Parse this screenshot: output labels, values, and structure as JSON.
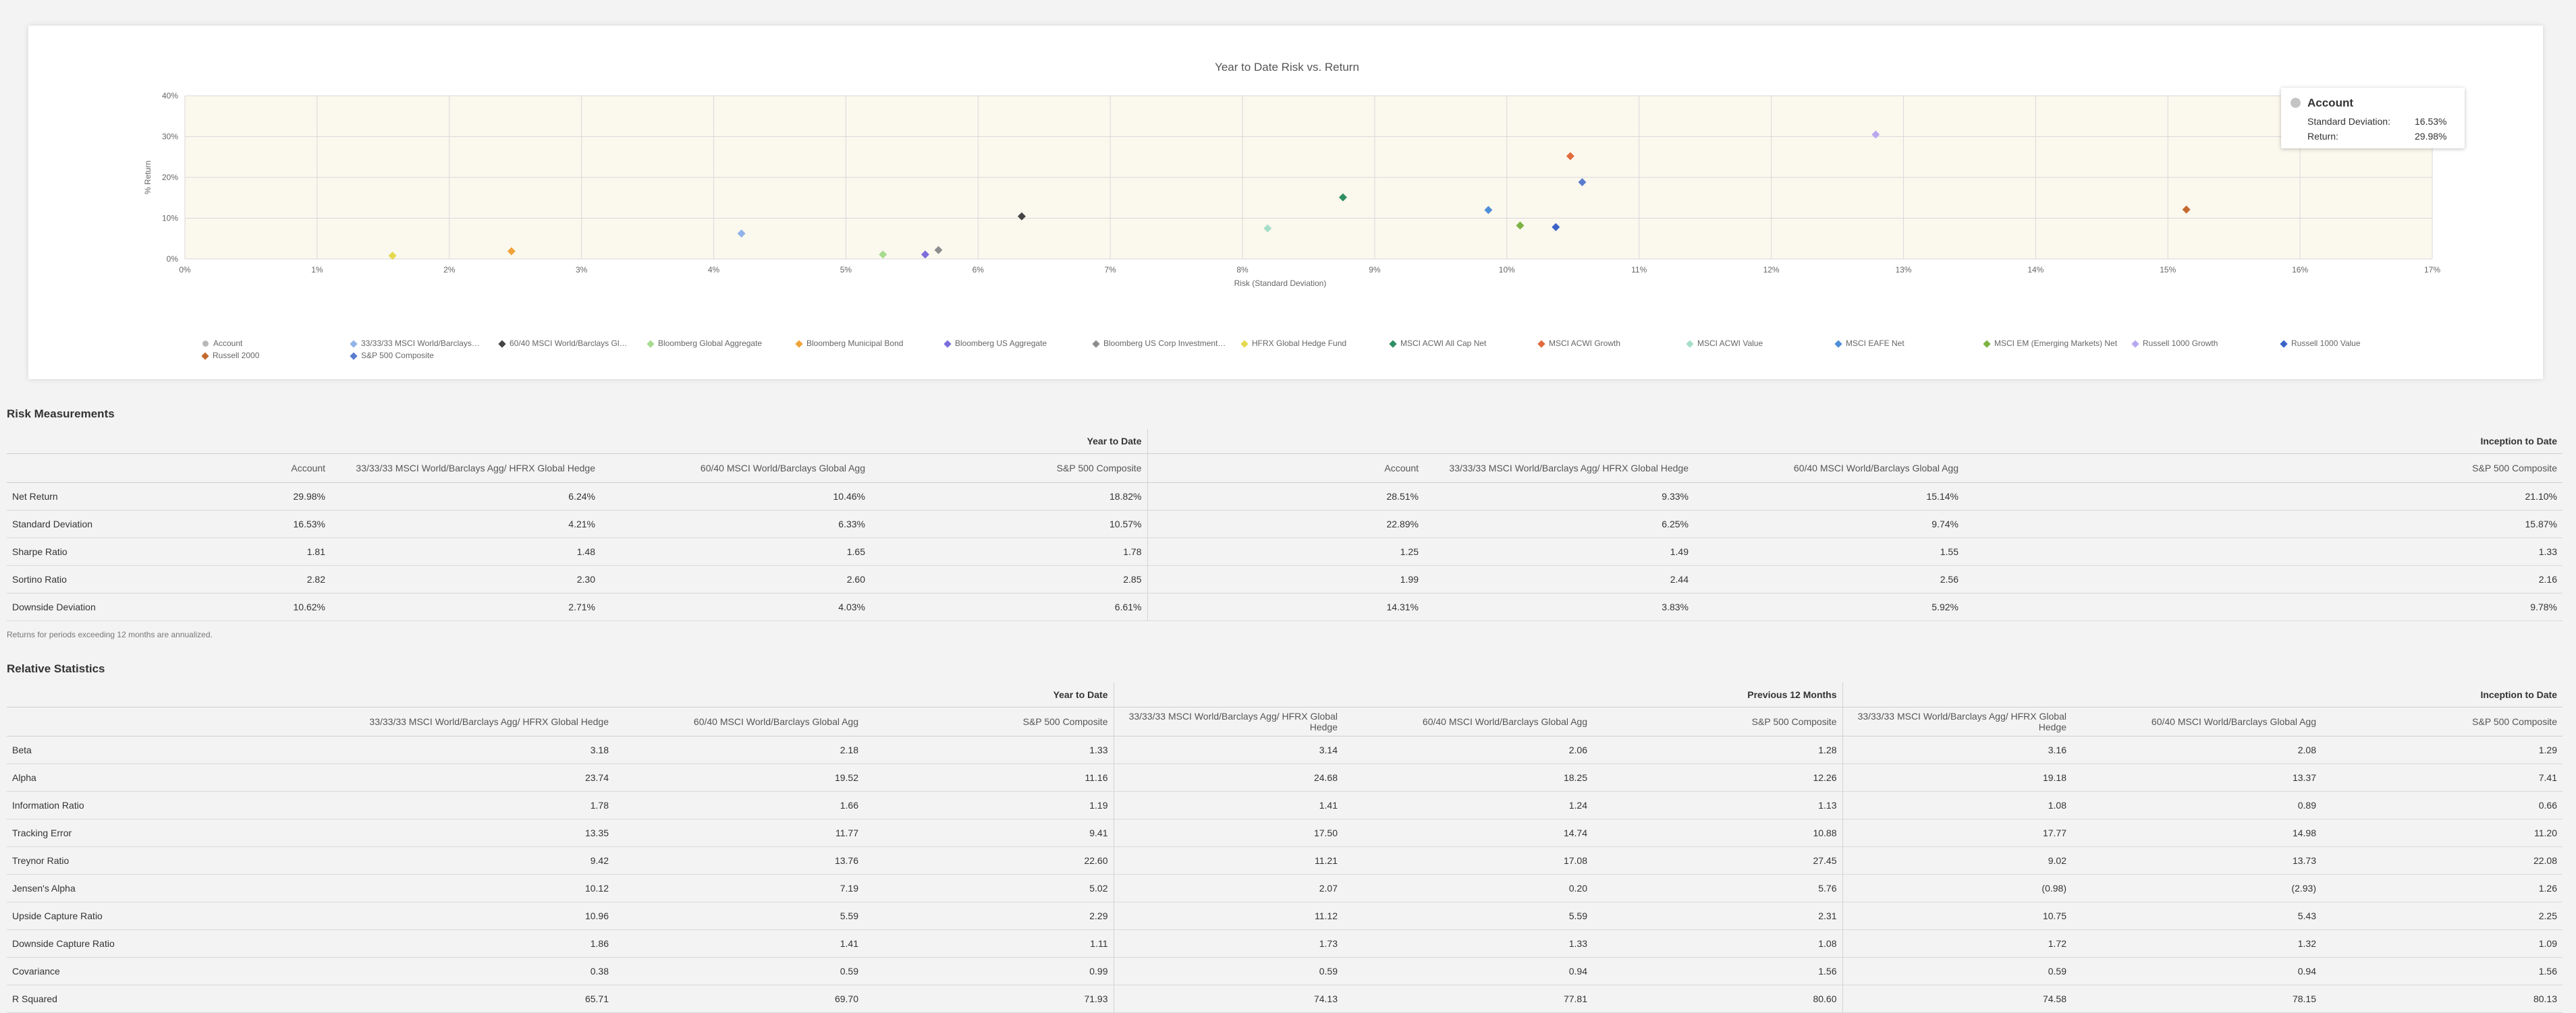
{
  "chart": {
    "tooltip": {
      "name": "Account",
      "std_dev_label": "Standard Deviation:",
      "std_dev_value": "16.53%",
      "return_label": "Return:",
      "return_value": "29.98%"
    },
    "legend": [
      {
        "name": "Account",
        "color": "#b8b8b8",
        "shape": "circle"
      },
      {
        "name": "33/33/33 MSCI World/Barclays…",
        "color": "#91b3e8",
        "shape": "diamond"
      },
      {
        "name": "60/40 MSCI World/Barclays Gl…",
        "color": "#444444",
        "shape": "diamond"
      },
      {
        "name": "Bloomberg Global Aggregate",
        "color": "#a7db8f",
        "shape": "diamond"
      },
      {
        "name": "Bloomberg Municipal Bond",
        "color": "#f0a33a",
        "shape": "diamond"
      },
      {
        "name": "Bloomberg US Aggregate",
        "color": "#7b6ddc",
        "shape": "diamond"
      },
      {
        "name": "Bloomberg US Corp Investment…",
        "color": "#8d8d8d",
        "shape": "diamond"
      },
      {
        "name": "HFRX Global Hedge Fund",
        "color": "#e4d94f",
        "shape": "diamond"
      },
      {
        "name": "MSCI ACWI All Cap Net",
        "color": "#2e8f62",
        "shape": "diamond"
      },
      {
        "name": "MSCI ACWI Growth",
        "color": "#e06b3c",
        "shape": "diamond"
      },
      {
        "name": "MSCI ACWI Value",
        "color": "#a6dfc8",
        "shape": "diamond"
      },
      {
        "name": "MSCI EAFE Net",
        "color": "#4e8fd6",
        "shape": "diamond"
      },
      {
        "name": "MSCI EM (Emerging Markets) Net",
        "color": "#7cb342",
        "shape": "diamond"
      },
      {
        "name": "Russell 1000 Growth",
        "color": "#b9a8f0",
        "shape": "diamond"
      },
      {
        "name": "Russell 1000 Value",
        "color": "#3b63c8",
        "shape": "diamond"
      },
      {
        "name": "Russell 2000",
        "color": "#c4692e",
        "shape": "diamond"
      },
      {
        "name": "S&P 500 Composite",
        "color": "#5a7ccf",
        "shape": "diamond"
      }
    ]
  },
  "chart_data": {
    "type": "scatter",
    "title": "Year to Date Risk vs. Return",
    "xlabel": "Risk (Standard Deviation)",
    "ylabel": "% Return",
    "xlim": [
      0,
      17
    ],
    "ylim": [
      0,
      40
    ],
    "x_ticks": [
      "0%",
      "1%",
      "2%",
      "3%",
      "4%",
      "5%",
      "6%",
      "7%",
      "8%",
      "9%",
      "10%",
      "11%",
      "12%",
      "13%",
      "14%",
      "15%",
      "16%",
      "17%"
    ],
    "y_ticks": [
      "0%",
      "10%",
      "20%",
      "30%",
      "40%"
    ],
    "grid": true,
    "series": [
      {
        "name": "Account",
        "x": 16.53,
        "y": 29.98
      },
      {
        "name": "33/33/33 MSCI World/Barclays…",
        "x": 4.21,
        "y": 6.24
      },
      {
        "name": "60/40 MSCI World/Barclays Gl…",
        "x": 6.33,
        "y": 10.46
      },
      {
        "name": "Bloomberg Global Aggregate",
        "x": 5.28,
        "y": 1.1
      },
      {
        "name": "Bloomberg Municipal Bond",
        "x": 2.47,
        "y": 1.9
      },
      {
        "name": "Bloomberg US Aggregate",
        "x": 5.6,
        "y": 1.1
      },
      {
        "name": "Bloomberg US Corp Investment…",
        "x": 5.7,
        "y": 2.2
      },
      {
        "name": "HFRX Global Hedge Fund",
        "x": 1.57,
        "y": 0.8
      },
      {
        "name": "MSCI ACWI All Cap Net",
        "x": 8.76,
        "y": 15.1
      },
      {
        "name": "MSCI ACWI Growth",
        "x": 10.48,
        "y": 25.2
      },
      {
        "name": "MSCI ACWI Value",
        "x": 8.19,
        "y": 7.5
      },
      {
        "name": "MSCI EAFE Net",
        "x": 9.86,
        "y": 12.0
      },
      {
        "name": "MSCI EM (Emerging Markets) Net",
        "x": 10.1,
        "y": 8.2
      },
      {
        "name": "Russell 1000 Growth",
        "x": 12.79,
        "y": 30.5
      },
      {
        "name": "Russell 1000 Value",
        "x": 10.37,
        "y": 7.8
      },
      {
        "name": "Russell 2000",
        "x": 15.14,
        "y": 12.1
      },
      {
        "name": "S&P 500 Composite",
        "x": 10.57,
        "y": 18.82
      }
    ]
  },
  "risk": {
    "title": "Risk Measurements",
    "period_ytd": "Year to Date",
    "period_itd": "Inception to Date",
    "columns": [
      "Account",
      "33/33/33 MSCI World/Barclays Agg/ HFRX Global Hedge",
      "60/40 MSCI World/Barclays Global Agg",
      "S&P 500 Composite"
    ],
    "rows": [
      {
        "label": "Net Return",
        "ytd": [
          "29.98%",
          "6.24%",
          "10.46%",
          "18.82%"
        ],
        "itd": [
          "28.51%",
          "9.33%",
          "15.14%",
          "21.10%"
        ]
      },
      {
        "label": "Standard Deviation",
        "ytd": [
          "16.53%",
          "4.21%",
          "6.33%",
          "10.57%"
        ],
        "itd": [
          "22.89%",
          "6.25%",
          "9.74%",
          "15.87%"
        ]
      },
      {
        "label": "Sharpe Ratio",
        "ytd": [
          "1.81",
          "1.48",
          "1.65",
          "1.78"
        ],
        "itd": [
          "1.25",
          "1.49",
          "1.55",
          "1.33"
        ]
      },
      {
        "label": "Sortino Ratio",
        "ytd": [
          "2.82",
          "2.30",
          "2.60",
          "2.85"
        ],
        "itd": [
          "1.99",
          "2.44",
          "2.56",
          "2.16"
        ]
      },
      {
        "label": "Downside Deviation",
        "ytd": [
          "10.62%",
          "2.71%",
          "4.03%",
          "6.61%"
        ],
        "itd": [
          "14.31%",
          "3.83%",
          "5.92%",
          "9.78%"
        ]
      }
    ],
    "note": "Returns for periods exceeding 12 months are annualized."
  },
  "relative": {
    "title": "Relative Statistics",
    "periods": [
      "Year to Date",
      "Previous 12 Months",
      "Inception to Date"
    ],
    "columns": [
      "33/33/33 MSCI World/Barclays Agg/ HFRX Global Hedge",
      "60/40 MSCI World/Barclays Global Agg",
      "S&P 500 Composite"
    ],
    "rows": [
      {
        "label": "Beta",
        "values": [
          "3.18",
          "2.18",
          "1.33",
          "3.14",
          "2.06",
          "1.28",
          "3.16",
          "2.08",
          "1.29"
        ]
      },
      {
        "label": "Alpha",
        "values": [
          "23.74",
          "19.52",
          "11.16",
          "24.68",
          "18.25",
          "12.26",
          "19.18",
          "13.37",
          "7.41"
        ]
      },
      {
        "label": "Information Ratio",
        "values": [
          "1.78",
          "1.66",
          "1.19",
          "1.41",
          "1.24",
          "1.13",
          "1.08",
          "0.89",
          "0.66"
        ]
      },
      {
        "label": "Tracking Error",
        "values": [
          "13.35",
          "11.77",
          "9.41",
          "17.50",
          "14.74",
          "10.88",
          "17.77",
          "14.98",
          "11.20"
        ]
      },
      {
        "label": "Treynor Ratio",
        "values": [
          "9.42",
          "13.76",
          "22.60",
          "11.21",
          "17.08",
          "27.45",
          "9.02",
          "13.73",
          "22.08"
        ]
      },
      {
        "label": "Jensen's Alpha",
        "values": [
          "10.12",
          "7.19",
          "5.02",
          "2.07",
          "0.20",
          "5.76",
          "(0.98)",
          "(2.93)",
          "1.26"
        ]
      },
      {
        "label": "Upside Capture Ratio",
        "values": [
          "10.96",
          "5.59",
          "2.29",
          "11.12",
          "5.59",
          "2.31",
          "10.75",
          "5.43",
          "2.25"
        ]
      },
      {
        "label": "Downside Capture Ratio",
        "values": [
          "1.86",
          "1.41",
          "1.11",
          "1.73",
          "1.33",
          "1.08",
          "1.72",
          "1.32",
          "1.09"
        ]
      },
      {
        "label": "Covariance",
        "values": [
          "0.38",
          "0.59",
          "0.99",
          "0.59",
          "0.94",
          "1.56",
          "0.59",
          "0.94",
          "1.56"
        ]
      },
      {
        "label": "R Squared",
        "values": [
          "65.71",
          "69.70",
          "71.93",
          "74.13",
          "77.81",
          "80.60",
          "74.58",
          "78.15",
          "80.13"
        ]
      }
    ]
  }
}
